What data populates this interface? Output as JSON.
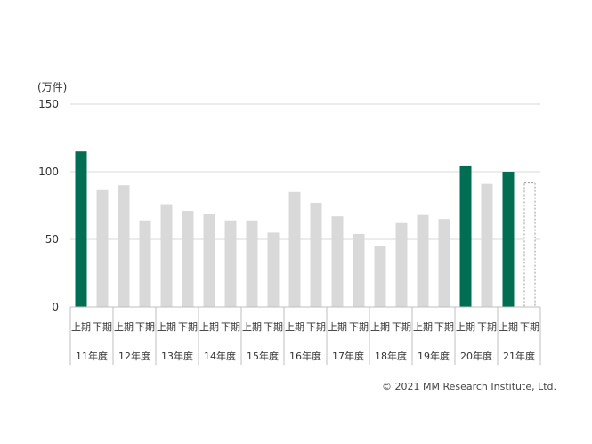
{
  "chart_data": {
    "type": "bar",
    "unit_label": "(万件)",
    "y_ticks": [
      0,
      50,
      100,
      150
    ],
    "ylim": [
      0,
      150
    ],
    "grid": true,
    "half_labels": [
      "上期",
      "下期"
    ],
    "years": [
      "11年度",
      "12年度",
      "13年度",
      "14年度",
      "15年度",
      "16年度",
      "17年度",
      "18年度",
      "19年度",
      "20年度",
      "21年度"
    ],
    "values": [
      115,
      87,
      90,
      64,
      76,
      71,
      69,
      64,
      64,
      55,
      85,
      77,
      67,
      54,
      45,
      62,
      68,
      65,
      104,
      91,
      100,
      92
    ],
    "highlighted_indices": [
      0,
      18,
      20
    ],
    "forecast_indices": [
      21
    ],
    "colors": {
      "highlight": "#006e51",
      "default": "#d9d9d9",
      "forecast_border": "#999999",
      "grid": "#d9d9d9",
      "axis": "#bfbfbf"
    }
  },
  "copyright": "© 2021 MM Research Institute, Ltd."
}
